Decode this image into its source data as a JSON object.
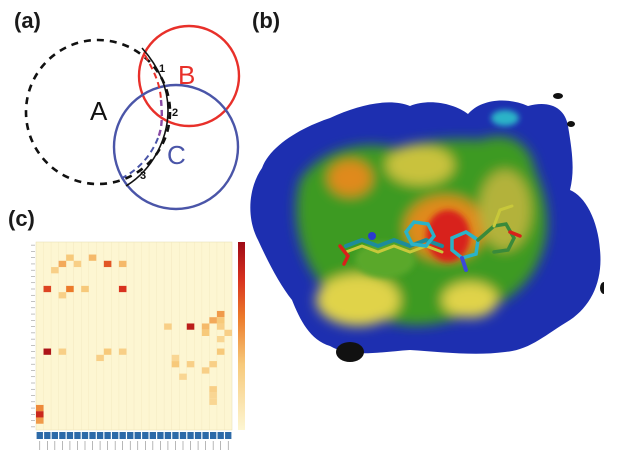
{
  "figure": {
    "panel_labels": {
      "a": "(a)",
      "b": "(b)",
      "c": "(c)"
    }
  },
  "venn": {
    "circles": [
      {
        "id": "A",
        "label": "A",
        "color": "#111111",
        "style": "dashed"
      },
      {
        "id": "B",
        "label": "B",
        "color": "#e8302a",
        "style": "solid"
      },
      {
        "id": "C",
        "label": "C",
        "color": "#4a55a8",
        "style": "solid"
      }
    ],
    "edge_numbers": [
      "1",
      "2",
      "3"
    ]
  },
  "surface": {
    "colors": {
      "blue": "#1d2fb0",
      "green": "#3c9a24",
      "yellow": "#e0d34a",
      "orange": "#e08a1e",
      "red": "#d8201a",
      "cyan": "#2ab3c8"
    }
  },
  "chart_data": {
    "type": "heatmap",
    "title": "",
    "rows": 30,
    "cols": 26,
    "colorbar": {
      "low": "#fdf6d2",
      "high": "#9e0a16"
    },
    "cells": [
      {
        "r": 2,
        "c": 4,
        "v": 0.35
      },
      {
        "r": 2,
        "c": 7,
        "v": 0.4
      },
      {
        "r": 3,
        "c": 3,
        "v": 0.45
      },
      {
        "r": 3,
        "c": 5,
        "v": 0.3
      },
      {
        "r": 3,
        "c": 9,
        "v": 0.7
      },
      {
        "r": 3,
        "c": 11,
        "v": 0.4
      },
      {
        "r": 4,
        "c": 2,
        "v": 0.3
      },
      {
        "r": 7,
        "c": 1,
        "v": 0.75
      },
      {
        "r": 7,
        "c": 4,
        "v": 0.6
      },
      {
        "r": 7,
        "c": 6,
        "v": 0.35
      },
      {
        "r": 7,
        "c": 11,
        "v": 0.8
      },
      {
        "r": 8,
        "c": 3,
        "v": 0.3
      },
      {
        "r": 11,
        "c": 24,
        "v": 0.5
      },
      {
        "r": 12,
        "c": 23,
        "v": 0.45
      },
      {
        "r": 12,
        "c": 24,
        "v": 0.35
      },
      {
        "r": 13,
        "c": 17,
        "v": 0.3
      },
      {
        "r": 13,
        "c": 20,
        "v": 0.9
      },
      {
        "r": 13,
        "c": 22,
        "v": 0.4
      },
      {
        "r": 13,
        "c": 24,
        "v": 0.3
      },
      {
        "r": 14,
        "c": 22,
        "v": 0.35
      },
      {
        "r": 14,
        "c": 25,
        "v": 0.3
      },
      {
        "r": 15,
        "c": 24,
        "v": 0.25
      },
      {
        "r": 17,
        "c": 1,
        "v": 0.95
      },
      {
        "r": 17,
        "c": 3,
        "v": 0.3
      },
      {
        "r": 17,
        "c": 9,
        "v": 0.35
      },
      {
        "r": 17,
        "c": 11,
        "v": 0.3
      },
      {
        "r": 17,
        "c": 24,
        "v": 0.35
      },
      {
        "r": 18,
        "c": 8,
        "v": 0.3
      },
      {
        "r": 18,
        "c": 18,
        "v": 0.25
      },
      {
        "r": 19,
        "c": 18,
        "v": 0.35
      },
      {
        "r": 19,
        "c": 20,
        "v": 0.3
      },
      {
        "r": 19,
        "c": 23,
        "v": 0.3
      },
      {
        "r": 20,
        "c": 22,
        "v": 0.3
      },
      {
        "r": 21,
        "c": 19,
        "v": 0.25
      },
      {
        "r": 23,
        "c": 23,
        "v": 0.3
      },
      {
        "r": 24,
        "c": 23,
        "v": 0.25
      },
      {
        "r": 25,
        "c": 23,
        "v": 0.25
      },
      {
        "r": 26,
        "c": 0,
        "v": 0.55
      },
      {
        "r": 27,
        "c": 0,
        "v": 0.85
      },
      {
        "r": 28,
        "c": 0,
        "v": 0.5
      }
    ]
  }
}
